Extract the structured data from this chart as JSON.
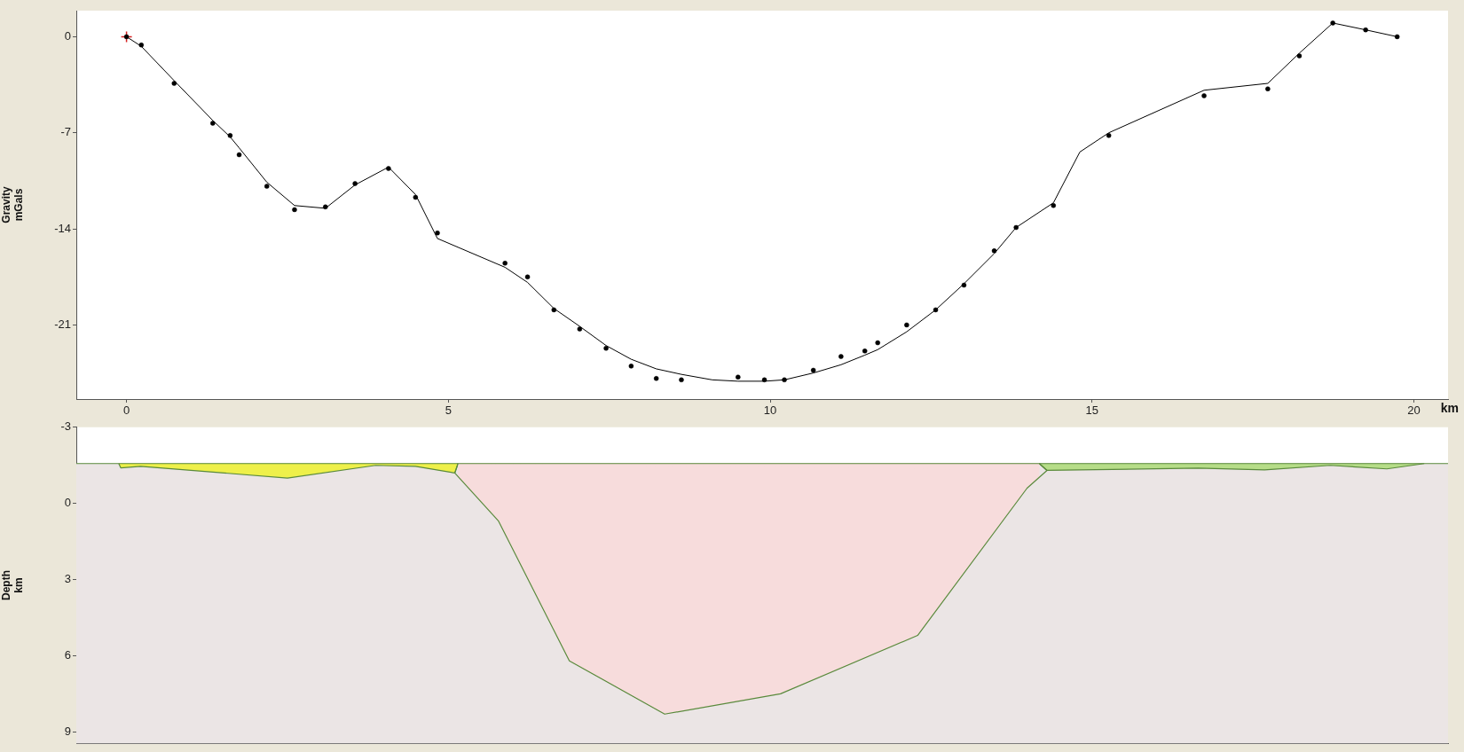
{
  "chart_data": [
    {
      "type": "line",
      "ylabel": "Gravity\nmGals",
      "xlabel": "km",
      "xlim": [
        -0.78,
        20.53
      ],
      "xticks": [
        0,
        5,
        10,
        15,
        20
      ],
      "ylim": [
        -26.4,
        1.9
      ],
      "yticks": [
        -21,
        -14,
        -7,
        0
      ],
      "series": [
        {
          "type": "scatter",
          "marker": "circle",
          "color": "#000000",
          "x": [
            0,
            0.23,
            0.74,
            1.34,
            1.61,
            1.75,
            2.18,
            2.61,
            3.09,
            3.55,
            4.07,
            4.49,
            4.83,
            5.88,
            6.23,
            6.64,
            7.04,
            7.45,
            7.84,
            8.23,
            8.62,
            9.5,
            9.91,
            10.22,
            10.67,
            11.1,
            11.47,
            11.67,
            12.12,
            12.57,
            13.01,
            13.48,
            13.82,
            14.4,
            15.26,
            16.74,
            17.73,
            18.22,
            18.74,
            19.25,
            19.74
          ],
          "values": [
            0,
            -0.6,
            -3.4,
            -6.3,
            -7.2,
            -8.6,
            -10.9,
            -12.6,
            -12.4,
            -10.7,
            -9.6,
            -11.7,
            -14.3,
            -16.5,
            -17.5,
            -19.9,
            -21.3,
            -22.7,
            -24,
            -24.9,
            -25,
            -24.8,
            -25,
            -25,
            -24.3,
            -23.3,
            -22.9,
            -22.3,
            -21,
            -19.9,
            -18.1,
            -15.6,
            -13.9,
            -12.3,
            -7.2,
            -4.3,
            -3.8,
            -1.4,
            1,
            0.5,
            0
          ]
        },
        {
          "type": "scatter",
          "marker": "cross",
          "color": "#d62020",
          "x": [
            0
          ],
          "values": [
            0
          ]
        },
        {
          "type": "line",
          "color": "#000000",
          "x": [
            0,
            0.23,
            0.74,
            1.34,
            1.61,
            1.75,
            2.18,
            2.61,
            3.09,
            3.55,
            4.07,
            4.49,
            4.83,
            5.88,
            6.23,
            6.64,
            7.04,
            7.45,
            7.84,
            8.23,
            8.62,
            9.1,
            9.5,
            9.91,
            10.22,
            10.67,
            11.1,
            11.47,
            11.67,
            12.12,
            12.57,
            13.01,
            13.48,
            13.82,
            14.4,
            14.81,
            15.26,
            16.74,
            17.73,
            18.22,
            18.74,
            19.25,
            19.74
          ],
          "values": [
            0,
            -0.7,
            -3.2,
            -6.1,
            -7.3,
            -8.1,
            -10.6,
            -12.3,
            -12.5,
            -10.8,
            -9.5,
            -11.5,
            -14.7,
            -16.8,
            -17.9,
            -19.8,
            -21.1,
            -22.5,
            -23.5,
            -24.2,
            -24.6,
            -25,
            -25.1,
            -25.1,
            -25,
            -24.5,
            -23.9,
            -23.2,
            -22.8,
            -21.5,
            -19.9,
            -18,
            -15.8,
            -13.9,
            -12.1,
            -8.4,
            -7,
            -3.9,
            -3.4,
            -1.2,
            1,
            0.5,
            0
          ]
        }
      ]
    },
    {
      "type": "area",
      "ylabel": "Depth\nkm",
      "xlim": [
        -0.78,
        20.53
      ],
      "ylim": [
        9.45,
        -3
      ],
      "yticks": [
        -3,
        0,
        3,
        6,
        9
      ],
      "tick_labels": "y",
      "bands": [
        {
          "axis": "y",
          "from": -1.57,
          "to": 9.45,
          "color": "#ebe5e5"
        }
      ],
      "ref_lines": [
        {
          "axis": "y",
          "value": -1.57,
          "color": "#5a8a3c"
        }
      ],
      "series": [
        {
          "color": "#f7dcdc",
          "x": [
            5.15,
            5.1,
            5.78,
            6.88,
            8.36,
            10.16,
            12.29,
            13.99,
            14.3,
            14.18
          ],
          "values": [
            -1.57,
            -1.2,
            0.7,
            6.2,
            8.3,
            7.5,
            5.2,
            -0.6,
            -1.3,
            -1.57
          ]
        },
        {
          "color": "#eef04a",
          "x": [
            -0.12,
            -0.09,
            0.22,
            2.5,
            3.87,
            4.49,
            5.1,
            5.15
          ],
          "values": [
            -1.57,
            -1.4,
            -1.46,
            -1,
            -1.5,
            -1.46,
            -1.2,
            -1.57
          ]
        },
        {
          "color": "#b6dd88",
          "x": [
            14.18,
            14.3,
            16.65,
            17.68,
            18.7,
            19.58,
            20.16
          ],
          "values": [
            -1.57,
            -1.3,
            -1.39,
            -1.32,
            -1.5,
            -1.36,
            -1.57
          ]
        }
      ]
    }
  ]
}
